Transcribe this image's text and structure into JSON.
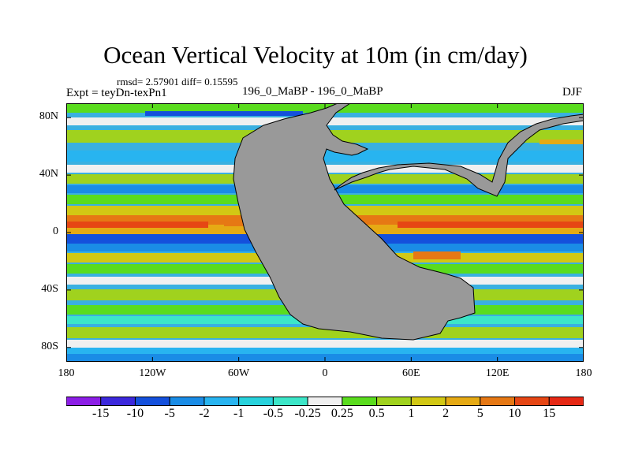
{
  "title": "Ocean Vertical Velocity at 10m (in cm/day)",
  "stats": "rmsd= 2.57901 diff= 0.15595",
  "expt": "Expt = teyDn-texPn1",
  "case": "196_0_MaBP - 196_0_MaBP",
  "season": "DJF",
  "map": {
    "y_ticks": [
      {
        "lat": 80,
        "label": "80N"
      },
      {
        "lat": 40,
        "label": "40N"
      },
      {
        "lat": 0,
        "label": "0"
      },
      {
        "lat": -40,
        "label": "40S"
      },
      {
        "lat": -80,
        "label": "80S"
      }
    ],
    "x_ticks": [
      {
        "lon": -180,
        "label": "180"
      },
      {
        "lon": -120,
        "label": "120W"
      },
      {
        "lon": -60,
        "label": "60W"
      },
      {
        "lon": 0,
        "label": "0"
      },
      {
        "lon": 60,
        "label": "60E"
      },
      {
        "lon": 120,
        "label": "120E"
      },
      {
        "lon": 180,
        "label": "180"
      }
    ],
    "land_color": "#999999",
    "ocean_base_color": "#3ab0e0"
  },
  "colorbar": {
    "colors": [
      "#8c1ee6",
      "#3c28dc",
      "#1450dc",
      "#1a8ce6",
      "#28b4f0",
      "#28d2dc",
      "#3ce6c8",
      "#f0f0f0",
      "#5adc1e",
      "#a0d21e",
      "#d2c814",
      "#e6aa14",
      "#e67814",
      "#e64614",
      "#e62814"
    ],
    "labels": [
      "-15",
      "-10",
      "-5",
      "-2",
      "-1",
      "-0.5",
      "-0.25",
      "0.25",
      "0.5",
      "1",
      "2",
      "5",
      "10",
      "15"
    ]
  }
}
